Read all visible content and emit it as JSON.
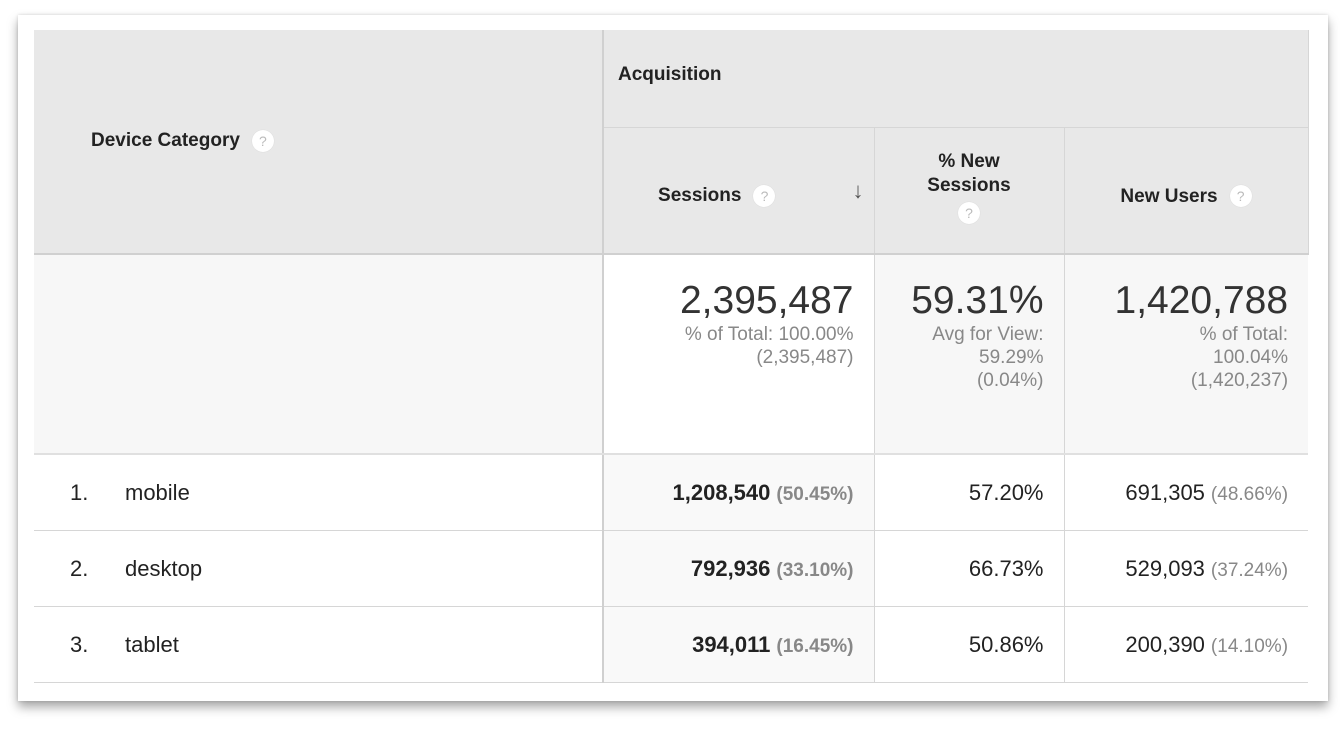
{
  "header": {
    "dimension": "Device Category",
    "group": "Acquisition",
    "columns": [
      {
        "label": "Sessions",
        "sorted": "descending"
      },
      {
        "label_line1": "% New",
        "label_line2": "Sessions"
      },
      {
        "label": "New Users"
      }
    ],
    "help_icon": "?"
  },
  "summary": {
    "sessions": {
      "value": "2,395,487",
      "line1": "% of Total: 100.00%",
      "line2": "(2,395,487)"
    },
    "new_sessions": {
      "value": "59.31%",
      "line1": "Avg for View:",
      "line2": "59.29%",
      "line3": "(0.04%)"
    },
    "new_users": {
      "value": "1,420,788",
      "line1": "% of Total:",
      "line2": "100.04%",
      "line3": "(1,420,237)"
    }
  },
  "rows": [
    {
      "index": "1.",
      "name": "mobile",
      "sessions": "1,208,540",
      "sessions_pct": "(50.45%)",
      "new_sessions": "57.20%",
      "new_users": "691,305",
      "new_users_pct": "(48.66%)"
    },
    {
      "index": "2.",
      "name": "desktop",
      "sessions": "792,936",
      "sessions_pct": "(33.10%)",
      "new_sessions": "66.73%",
      "new_users": "529,093",
      "new_users_pct": "(37.24%)"
    },
    {
      "index": "3.",
      "name": "tablet",
      "sessions": "394,011",
      "sessions_pct": "(16.45%)",
      "new_sessions": "50.86%",
      "new_users": "200,390",
      "new_users_pct": "(14.10%)"
    }
  ]
}
